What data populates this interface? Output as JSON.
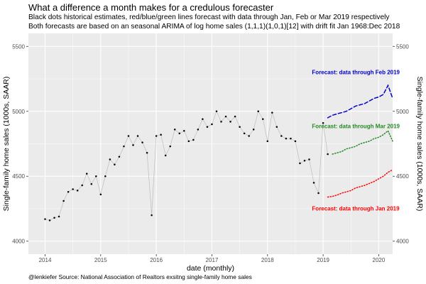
{
  "header": {
    "title": "What a difference a month makes for a credulous forecaster",
    "subtitle_line1": "Black dots historical estimates, red/blue/green lines forecast with data through Jan, Feb or Mar 2019 respectively",
    "subtitle_line2": "Both forecasts are based on an seasonal ARIMA of log home sales (1,1,1)(1,0,1)[12] with drift fit Jan 1968:Dec 2018"
  },
  "caption": "@lenkiefer Source: National Association of Realtors exsitng single-family home sales",
  "colors": {
    "panel": "#ebebeb",
    "grid_major": "#ffffff",
    "historical": "#000000",
    "history_line": "#bdbdbd",
    "jan_forecast": "#ff0000",
    "feb_forecast": "#0000cc",
    "mar_forecast": "#228b22"
  },
  "chart_data": {
    "type": "line",
    "xlabel": "date (monthly)",
    "ylabel_left": "Single-family home sales (1000s, SAAR)",
    "ylabel_right": "Single-family home sales (1000s, SAAR)",
    "xlim": [
      2013.7,
      2020.25
    ],
    "ylim": [
      3900,
      5600
    ],
    "x_ticks": [
      2014,
      2015,
      2016,
      2017,
      2018,
      2019,
      2020
    ],
    "x_tick_labels": [
      "2014",
      "2015",
      "2016",
      "2017",
      "2018",
      "2019",
      "2020"
    ],
    "y_ticks": [
      4000,
      4500,
      5000,
      5500
    ],
    "y_tick_labels": [
      "4000",
      "4500",
      "5000",
      "5500"
    ],
    "series": [
      {
        "name": "historical",
        "style": "points",
        "start": [
          2014,
          1
        ],
        "values": [
          4170,
          4160,
          4180,
          4190,
          4310,
          4380,
          4400,
          4390,
          4430,
          4520,
          4440,
          4500,
          4360,
          4500,
          4630,
          4590,
          4650,
          4730,
          4810,
          4740,
          4810,
          4760,
          4680,
          4200,
          4810,
          4820,
          4660,
          4730,
          4860,
          4830,
          4850,
          4770,
          4780,
          4860,
          4940,
          4880,
          4900,
          5000,
          4920,
          4960,
          4920,
          4960,
          4880,
          4830,
          4810,
          4860,
          5000,
          4940,
          4770,
          4990,
          4880,
          4810,
          4790,
          4790,
          4770,
          4600,
          4620,
          4630,
          4450,
          4370,
          4910,
          4670
        ]
      },
      {
        "name": "Forecast: data through Jan 2019",
        "color": "jan_forecast",
        "style": "dotted",
        "start": [
          2019,
          2
        ],
        "values": [
          4340,
          4345,
          4355,
          4370,
          4380,
          4390,
          4410,
          4420,
          4430,
          4445,
          4460,
          4480,
          4500,
          4530,
          4550
        ]
      },
      {
        "name": "Forecast: data through Feb 2019",
        "color": "feb_forecast",
        "style": "dashed",
        "start": [
          2019,
          2
        ],
        "values": [
          4950,
          4970,
          4980,
          4990,
          5000,
          5020,
          5040,
          5050,
          5060,
          5080,
          5100,
          5110,
          5130,
          5200,
          5100
        ]
      },
      {
        "name": "Forecast: data through Mar 2019",
        "color": "mar_forecast",
        "style": "dotted",
        "start": [
          2019,
          3
        ],
        "values": [
          4670,
          4680,
          4690,
          4710,
          4720,
          4730,
          4750,
          4760,
          4770,
          4790,
          4800,
          4820,
          4850,
          4770
        ]
      }
    ],
    "annotations": [
      {
        "text": "Forecast: data through Feb 2019",
        "color": "feb_forecast",
        "x": 2018.8,
        "y": 5285
      },
      {
        "text": "Forecast: data through Mar 2019",
        "color": "mar_forecast",
        "x": 2018.8,
        "y": 4870
      },
      {
        "text": "Forecast: data through Jan 2019",
        "color": "jan_forecast",
        "x": 2018.8,
        "y": 4235
      }
    ]
  }
}
